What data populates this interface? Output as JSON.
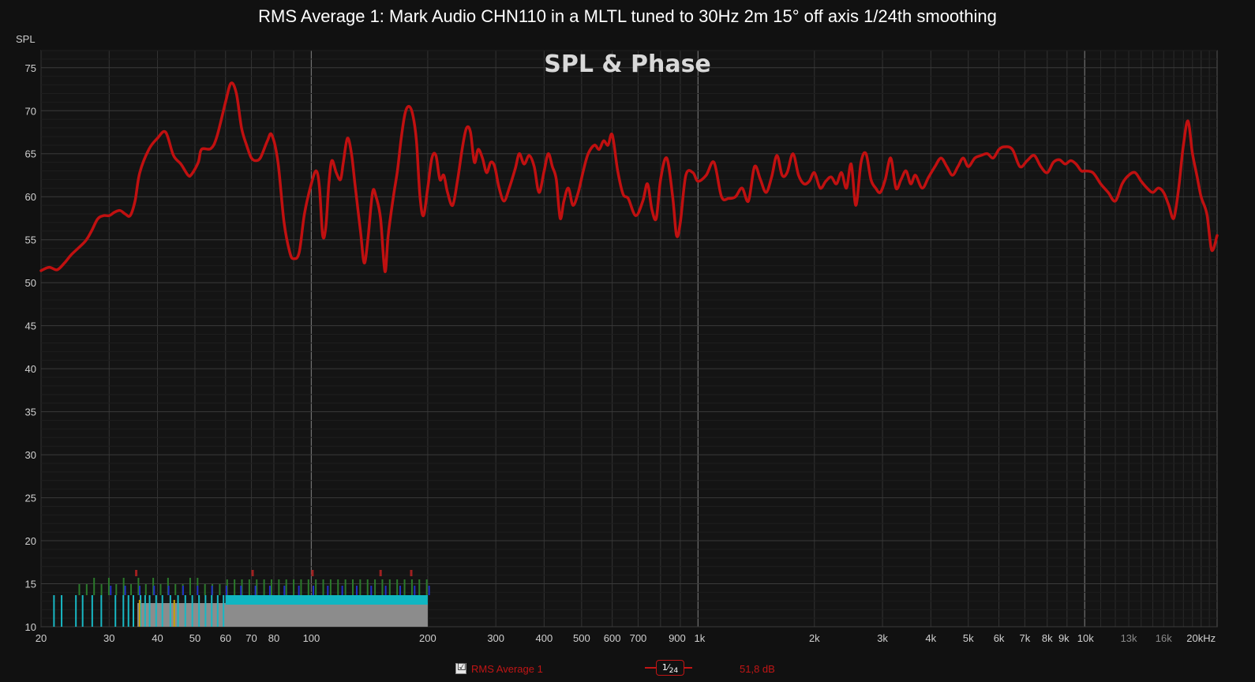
{
  "title": "RMS Average 1: Mark Audio CHN110 in a MLTL tuned to 30Hz 2m 15° off axis 1/24th smoothing",
  "overlay_title": "SPL & Phase",
  "colors": {
    "background": "#111111",
    "plot_bg": "#141414",
    "grid": "#3a3a3a",
    "curve": "#c01010"
  },
  "legend": {
    "checked": "☑",
    "name": "RMS Average 1",
    "smoothing_num": "1",
    "smoothing_den": "24",
    "value": "51,8 dB"
  },
  "chart_data": {
    "type": "line",
    "title": "RMS Average 1: Mark Audio CHN110 in a MLTL tuned to 30Hz 2m 15° off axis 1/24th smoothing",
    "ylabel": "SPL",
    "xlabel": "",
    "x_scale": "log",
    "xlim": [
      20,
      22000
    ],
    "ylim": [
      10,
      77
    ],
    "grid": true,
    "y_ticks": [
      10,
      15,
      20,
      25,
      30,
      35,
      40,
      45,
      50,
      55,
      60,
      65,
      70,
      75
    ],
    "x_ticks": [
      {
        "value": 20,
        "label": "20"
      },
      {
        "value": 30,
        "label": "30"
      },
      {
        "value": 40,
        "label": "40"
      },
      {
        "value": 50,
        "label": "50"
      },
      {
        "value": 60,
        "label": "60"
      },
      {
        "value": 70,
        "label": "70"
      },
      {
        "value": 80,
        "label": "80"
      },
      {
        "value": 100,
        "label": "100"
      },
      {
        "value": 200,
        "label": "200"
      },
      {
        "value": 300,
        "label": "300"
      },
      {
        "value": 400,
        "label": "400"
      },
      {
        "value": 500,
        "label": "500"
      },
      {
        "value": 600,
        "label": "600"
      },
      {
        "value": 700,
        "label": "700"
      },
      {
        "value": 900,
        "label": "900"
      },
      {
        "value": 1000,
        "label": "1k"
      },
      {
        "value": 2000,
        "label": "2k"
      },
      {
        "value": 3000,
        "label": "3k"
      },
      {
        "value": 4000,
        "label": "4k"
      },
      {
        "value": 5000,
        "label": "5k"
      },
      {
        "value": 6000,
        "label": "6k"
      },
      {
        "value": 7000,
        "label": "7k"
      },
      {
        "value": 8000,
        "label": "8k"
      },
      {
        "value": 9000,
        "label": "9k"
      },
      {
        "value": 10000,
        "label": "10k"
      },
      {
        "value": 13000,
        "label": "13k"
      },
      {
        "value": 16000,
        "label": "16k"
      },
      {
        "value": 20000,
        "label": "20kHz"
      }
    ],
    "dim_tick_labels": [
      "13k",
      "16k"
    ],
    "series": [
      {
        "name": "RMS Average 1",
        "color": "#c01010",
        "points": [
          [
            20,
            51.4
          ],
          [
            21,
            51.8
          ],
          [
            22,
            51.5
          ],
          [
            23,
            52.3
          ],
          [
            24,
            53.3
          ],
          [
            26,
            54.8
          ],
          [
            27,
            56
          ],
          [
            28,
            57.4
          ],
          [
            29,
            57.8
          ],
          [
            30,
            57.8
          ],
          [
            31,
            58.2
          ],
          [
            32,
            58.4
          ],
          [
            33,
            58
          ],
          [
            34,
            57.8
          ],
          [
            35,
            59.5
          ],
          [
            36,
            62.8
          ],
          [
            38,
            65.5
          ],
          [
            40,
            66.8
          ],
          [
            42,
            67.5
          ],
          [
            44,
            64.8
          ],
          [
            46,
            63.8
          ],
          [
            48,
            62.5
          ],
          [
            49,
            62.6
          ],
          [
            51,
            64
          ],
          [
            52,
            65.5
          ],
          [
            55,
            65.6
          ],
          [
            57,
            67
          ],
          [
            60,
            71
          ],
          [
            62,
            73.2
          ],
          [
            64,
            72
          ],
          [
            66,
            68
          ],
          [
            68,
            66
          ],
          [
            70,
            64.5
          ],
          [
            72,
            64.2
          ],
          [
            74,
            64.6
          ],
          [
            77,
            66.5
          ],
          [
            79,
            67.2
          ],
          [
            82,
            64
          ],
          [
            85,
            57
          ],
          [
            88,
            53.5
          ],
          [
            90,
            52.8
          ],
          [
            93,
            53.5
          ],
          [
            96,
            58
          ],
          [
            100,
            61.5
          ],
          [
            103,
            63
          ],
          [
            105,
            61
          ],
          [
            107,
            55.5
          ],
          [
            109,
            56.5
          ],
          [
            111,
            61.5
          ],
          [
            113,
            64.2
          ],
          [
            116,
            62.8
          ],
          [
            119,
            62
          ],
          [
            121,
            64
          ],
          [
            124,
            66.8
          ],
          [
            127,
            65
          ],
          [
            130,
            61
          ],
          [
            134,
            56
          ],
          [
            137,
            52.3
          ],
          [
            140,
            55
          ],
          [
            144,
            60.5
          ],
          [
            147,
            60
          ],
          [
            151,
            57.5
          ],
          [
            155,
            51.3
          ],
          [
            158,
            55.5
          ],
          [
            163,
            60
          ],
          [
            167,
            63
          ],
          [
            171,
            67
          ],
          [
            175,
            69.8
          ],
          [
            179,
            70.5
          ],
          [
            183,
            69.5
          ],
          [
            187,
            66.5
          ],
          [
            191,
            60
          ],
          [
            195,
            57.8
          ],
          [
            200,
            61
          ],
          [
            205,
            64.5
          ],
          [
            210,
            64.8
          ],
          [
            215,
            62
          ],
          [
            220,
            62.5
          ],
          [
            225,
            60.5
          ],
          [
            232,
            59
          ],
          [
            239,
            62
          ],
          [
            246,
            65.8
          ],
          [
            252,
            68
          ],
          [
            258,
            67.5
          ],
          [
            264,
            64
          ],
          [
            270,
            65.5
          ],
          [
            277,
            64.5
          ],
          [
            284,
            62.8
          ],
          [
            291,
            64
          ],
          [
            298,
            63.5
          ],
          [
            306,
            61
          ],
          [
            315,
            59.5
          ],
          [
            325,
            61
          ],
          [
            337,
            63.3
          ],
          [
            345,
            65
          ],
          [
            355,
            63.8
          ],
          [
            366,
            64.8
          ],
          [
            377,
            63.5
          ],
          [
            388,
            60.5
          ],
          [
            400,
            63
          ],
          [
            410,
            65
          ],
          [
            420,
            63.5
          ],
          [
            430,
            62
          ],
          [
            440,
            57.5
          ],
          [
            450,
            59.5
          ],
          [
            462,
            61
          ],
          [
            475,
            59
          ],
          [
            490,
            60.5
          ],
          [
            505,
            63
          ],
          [
            520,
            65
          ],
          [
            540,
            66
          ],
          [
            555,
            65.5
          ],
          [
            570,
            66.5
          ],
          [
            585,
            66
          ],
          [
            600,
            67.2
          ],
          [
            620,
            63
          ],
          [
            640,
            60.3
          ],
          [
            660,
            59.8
          ],
          [
            690,
            57.8
          ],
          [
            720,
            59.5
          ],
          [
            740,
            61.5
          ],
          [
            760,
            58.5
          ],
          [
            780,
            57.5
          ],
          [
            800,
            62
          ],
          [
            830,
            64.5
          ],
          [
            860,
            60
          ],
          [
            880,
            55.5
          ],
          [
            900,
            57
          ],
          [
            930,
            62.5
          ],
          [
            970,
            62.8
          ],
          [
            1000,
            61.8
          ],
          [
            1050,
            62.5
          ],
          [
            1100,
            64
          ],
          [
            1150,
            60
          ],
          [
            1200,
            59.8
          ],
          [
            1250,
            60
          ],
          [
            1300,
            61
          ],
          [
            1350,
            59.5
          ],
          [
            1400,
            63.5
          ],
          [
            1450,
            62
          ],
          [
            1500,
            60.5
          ],
          [
            1550,
            62.3
          ],
          [
            1600,
            64.8
          ],
          [
            1650,
            62.5
          ],
          [
            1700,
            62.8
          ],
          [
            1760,
            65
          ],
          [
            1820,
            62.5
          ],
          [
            1880,
            61.5
          ],
          [
            1940,
            61.8
          ],
          [
            2000,
            62.8
          ],
          [
            2070,
            61
          ],
          [
            2140,
            61.8
          ],
          [
            2210,
            62.3
          ],
          [
            2280,
            61.5
          ],
          [
            2350,
            62.8
          ],
          [
            2420,
            61
          ],
          [
            2490,
            63.8
          ],
          [
            2560,
            59
          ],
          [
            2640,
            64
          ],
          [
            2720,
            65
          ],
          [
            2800,
            62
          ],
          [
            2880,
            61
          ],
          [
            2960,
            60.5
          ],
          [
            3050,
            62
          ],
          [
            3150,
            64.5
          ],
          [
            3250,
            61
          ],
          [
            3350,
            62
          ],
          [
            3450,
            63
          ],
          [
            3550,
            61.5
          ],
          [
            3650,
            62.5
          ],
          [
            3800,
            61
          ],
          [
            3950,
            62.3
          ],
          [
            4100,
            63.5
          ],
          [
            4250,
            64.5
          ],
          [
            4400,
            63.5
          ],
          [
            4550,
            62.5
          ],
          [
            4700,
            63.5
          ],
          [
            4850,
            64.5
          ],
          [
            5000,
            63.5
          ],
          [
            5200,
            64.5
          ],
          [
            5400,
            64.8
          ],
          [
            5600,
            65
          ],
          [
            5800,
            64.5
          ],
          [
            6000,
            65.5
          ],
          [
            6200,
            65.8
          ],
          [
            6500,
            65.5
          ],
          [
            6800,
            63.5
          ],
          [
            7100,
            64.2
          ],
          [
            7400,
            64.8
          ],
          [
            7700,
            63.5
          ],
          [
            8000,
            62.8
          ],
          [
            8300,
            64
          ],
          [
            8600,
            64.3
          ],
          [
            8900,
            63.8
          ],
          [
            9200,
            64.2
          ],
          [
            9500,
            63.8
          ],
          [
            9800,
            63
          ],
          [
            10000,
            63
          ],
          [
            10500,
            62.8
          ],
          [
            11000,
            61.5
          ],
          [
            11500,
            60.5
          ],
          [
            12000,
            59.5
          ],
          [
            12500,
            61.5
          ],
          [
            13000,
            62.5
          ],
          [
            13500,
            62.8
          ],
          [
            14000,
            61.8
          ],
          [
            14500,
            61
          ],
          [
            15000,
            60.5
          ],
          [
            15500,
            61
          ],
          [
            16000,
            60.5
          ],
          [
            16500,
            59
          ],
          [
            17000,
            57.5
          ],
          [
            17500,
            61
          ],
          [
            18000,
            66
          ],
          [
            18500,
            68.8
          ],
          [
            19000,
            65
          ],
          [
            19500,
            62.5
          ],
          [
            20000,
            60
          ],
          [
            20700,
            58
          ],
          [
            21300,
            53.8
          ],
          [
            22000,
            55.5
          ]
        ]
      }
    ]
  }
}
